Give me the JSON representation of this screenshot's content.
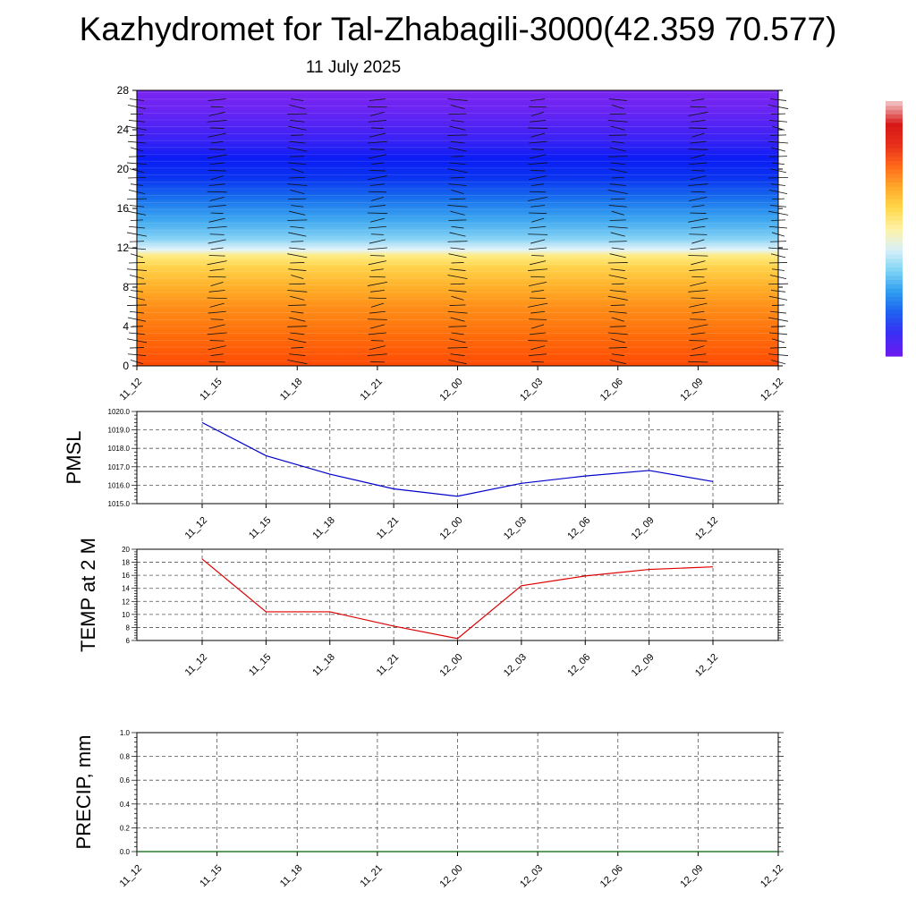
{
  "title": "Kazhydromet for Tal-Zhabagili-3000(42.359 70.577)",
  "subtitle": "11 July 2025",
  "colors": {
    "pmsl_line": "#0000cc",
    "temp_line": "#dd0000",
    "precip_line": "#006400",
    "grid": "#555555"
  },
  "chart_data": [
    {
      "type": "heatmap",
      "id": "cross_section",
      "title": "",
      "xlabel": "",
      "ylabel": "",
      "x_tick_labels": [
        "11_12",
        "11_15",
        "11_18",
        "11_21",
        "12_00",
        "12_03",
        "12_06",
        "12_09",
        "12_12"
      ],
      "y_ticks": [
        0,
        4,
        8,
        12,
        16,
        20,
        24,
        28
      ],
      "ylim": [
        0,
        28
      ],
      "color_description": "filled contours: warm orange/red near the bottom, yellow to about 11.5, light blue to cyan around 12-16, deep blue near 20, violet near the top; overlaid with wind barbs",
      "colorbar": {
        "colors_bottom_to_top": [
          "#6a1bf0",
          "#3a2ff5",
          "#1e60f0",
          "#2f9ef0",
          "#7fd4f5",
          "#d8f0f8",
          "#fff2a8",
          "#ffd84a",
          "#ffa82a",
          "#ff6a1a",
          "#e8301a",
          "#d81818",
          "#f0b8b8"
        ]
      },
      "palette_bottom_to_top": [
        [
          0,
          "#ff4a05"
        ],
        [
          3,
          "#ff6c0a"
        ],
        [
          6,
          "#ff8f18"
        ],
        [
          8,
          "#ffb028"
        ],
        [
          10,
          "#ffd24a"
        ],
        [
          11.2,
          "#ffec80"
        ],
        [
          11.8,
          "#e4f4fa"
        ],
        [
          13,
          "#80d0f5"
        ],
        [
          15,
          "#3aa4ef"
        ],
        [
          17,
          "#1870ee"
        ],
        [
          19,
          "#0a35f0"
        ],
        [
          21,
          "#0a1df5"
        ],
        [
          23,
          "#3a22f5"
        ],
        [
          26,
          "#6a24f3"
        ],
        [
          28,
          "#7a25f0"
        ]
      ]
    },
    {
      "type": "line",
      "id": "pmsl",
      "ylabel": "PMSL",
      "categories": [
        "11_12",
        "11_15",
        "11_18",
        "11_21",
        "12_00",
        "12_03",
        "12_06",
        "12_09",
        "12_12"
      ],
      "series": [
        {
          "values": [
            1019.4,
            1017.6,
            1016.6,
            1015.8,
            1015.4,
            1016.1,
            1016.5,
            1016.8,
            1016.2
          ]
        }
      ],
      "ylim": [
        1015.0,
        1020.0
      ],
      "y_ticks": [
        "1015.0",
        "1016.0",
        "1017.0",
        "1018.0",
        "1019.0",
        "1020.0"
      ],
      "grid": true
    },
    {
      "type": "line",
      "id": "temp",
      "ylabel": "TEMP at 2 M",
      "categories": [
        "11_12",
        "11_15",
        "11_18",
        "11_21",
        "12_00",
        "12_03",
        "12_06",
        "12_09",
        "12_12"
      ],
      "series": [
        {
          "values": [
            18.5,
            10.4,
            10.4,
            8.2,
            6.3,
            14.4,
            15.9,
            16.9,
            17.3
          ]
        }
      ],
      "ylim": [
        6,
        20
      ],
      "y_ticks": [
        "6",
        "8",
        "10",
        "12",
        "14",
        "16",
        "18",
        "20"
      ],
      "grid": true
    },
    {
      "type": "line",
      "id": "precip",
      "ylabel": "PRECIP, mm",
      "categories": [
        "11_12",
        "11_15",
        "11_18",
        "11_21",
        "12_00",
        "12_03",
        "12_06",
        "12_09",
        "12_12"
      ],
      "series": [
        {
          "values": [
            0,
            0,
            0,
            0,
            0,
            0,
            0,
            0,
            0
          ]
        }
      ],
      "ylim": [
        0.0,
        1.0
      ],
      "y_ticks": [
        "0.0",
        "0.2",
        "0.4",
        "0.6",
        "0.8",
        "1.0"
      ],
      "grid": true
    }
  ]
}
